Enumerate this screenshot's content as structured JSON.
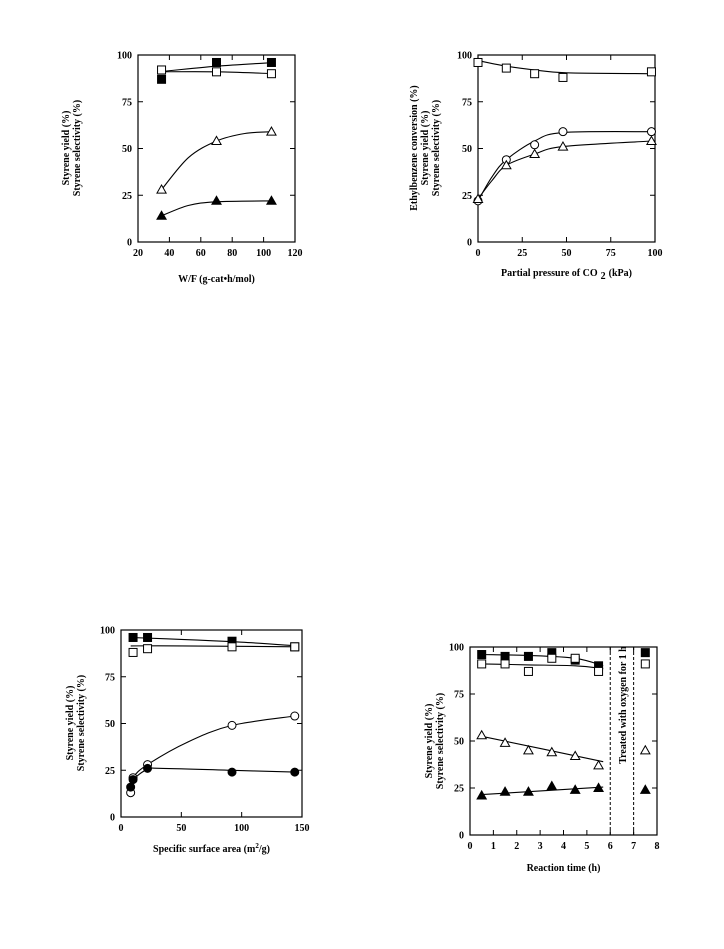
{
  "chart_data": [
    {
      "type": "scatter",
      "title": "",
      "xlabel": "W/F (g-cat•h/mol)",
      "ylabels": [
        "Styrene yield (%)",
        "Styrene selectivity (%)"
      ],
      "xlim": [
        20,
        120
      ],
      "ylim": [
        0,
        100
      ],
      "xticks": [
        20,
        40,
        60,
        80,
        100,
        120
      ],
      "yticks": [
        0,
        25,
        50,
        75,
        100
      ],
      "series": [
        {
          "marker": "square-filled",
          "x": [
            35,
            70,
            105
          ],
          "y": [
            87,
            96,
            96
          ],
          "curve": [
            [
              33,
              91
            ],
            [
              70,
              94
            ],
            [
              107,
              96
            ]
          ]
        },
        {
          "marker": "square-open",
          "x": [
            35,
            70,
            105
          ],
          "y": [
            92,
            91,
            90
          ],
          "curve": [
            [
              33,
              91
            ],
            [
              70,
              91
            ],
            [
              107,
              90
            ]
          ]
        },
        {
          "marker": "triangle-open",
          "x": [
            35,
            70,
            105
          ],
          "y": [
            28,
            54,
            59
          ],
          "curve": [
            [
              35,
              28
            ],
            [
              52,
              45
            ],
            [
              70,
              54
            ],
            [
              88,
              58
            ],
            [
              105,
              59
            ]
          ]
        },
        {
          "marker": "triangle-filled",
          "x": [
            35,
            70,
            105
          ],
          "y": [
            14,
            22,
            22
          ],
          "curve": [
            [
              35,
              14
            ],
            [
              52,
              19.5
            ],
            [
              70,
              21.5
            ],
            [
              105,
              22
            ]
          ]
        }
      ]
    },
    {
      "type": "scatter",
      "title": "",
      "xlabel": "Partial pressure of CO",
      "xlabel_sub": "2",
      "xlabel_unit": "(kPa)",
      "ylabels": [
        "Ethylbenzene conversion (%)",
        "Styrene yield (%)",
        "Styrene selectivity (%)"
      ],
      "xlim": [
        0,
        100
      ],
      "ylim": [
        0,
        100
      ],
      "xticks": [
        0,
        25,
        50,
        75,
        100
      ],
      "yticks": [
        0,
        25,
        50,
        75,
        100
      ],
      "series": [
        {
          "marker": "square-open",
          "x": [
            0,
            16,
            32,
            48,
            98
          ],
          "y": [
            96,
            93,
            90,
            88,
            91
          ],
          "curve": [
            [
              0,
              97
            ],
            [
              16,
              94
            ],
            [
              32,
              92
            ],
            [
              50,
              90.5
            ],
            [
              98,
              90
            ]
          ]
        },
        {
          "marker": "circle-open",
          "x": [
            0,
            16,
            32,
            48,
            98
          ],
          "y": [
            22,
            44,
            52,
            59,
            59
          ],
          "curve": [
            [
              0,
              22
            ],
            [
              8,
              35
            ],
            [
              16,
              44
            ],
            [
              32,
              54
            ],
            [
              48,
              58.5
            ],
            [
              98,
              59
            ]
          ]
        },
        {
          "marker": "triangle-open",
          "x": [
            0,
            16,
            32,
            48,
            98
          ],
          "y": [
            23,
            41,
            47,
            51,
            54
          ],
          "curve": [
            [
              0,
              23
            ],
            [
              8,
              33
            ],
            [
              16,
              41
            ],
            [
              32,
              47
            ],
            [
              48,
              51
            ],
            [
              98,
              54
            ]
          ]
        }
      ]
    },
    {
      "type": "scatter",
      "title": "",
      "xlabel": "Specific surface area (m",
      "xlabel_sup": "2",
      "xlabel_unit": "/g)",
      "ylabels": [
        "Styrene yield (%)",
        "Styrene selectivity (%)"
      ],
      "xlim": [
        0,
        150
      ],
      "ylim": [
        0,
        100
      ],
      "xticks": [
        0,
        50,
        100,
        150
      ],
      "yticks": [
        0,
        25,
        50,
        75,
        100
      ],
      "series": [
        {
          "marker": "square-filled",
          "x": [
            10,
            22,
            92,
            144
          ],
          "y": [
            96,
            96,
            94,
            91
          ],
          "curve": [
            [
              8,
              96
            ],
            [
              50,
              95
            ],
            [
              100,
              93.5
            ],
            [
              146,
              91.5
            ]
          ]
        },
        {
          "marker": "square-open",
          "x": [
            10,
            22,
            92,
            144
          ],
          "y": [
            88,
            90,
            91,
            91
          ],
          "curve": [
            [
              8,
              91.5
            ],
            [
              50,
              91.5
            ],
            [
              146,
              91
            ]
          ]
        },
        {
          "marker": "circle-open",
          "x": [
            8,
            10,
            22,
            92,
            144
          ],
          "y": [
            13,
            21,
            28,
            49,
            54
          ],
          "curve": [
            [
              8,
              13
            ],
            [
              10,
              21
            ],
            [
              22,
              28
            ],
            [
              55,
              40
            ],
            [
              92,
              49
            ],
            [
              144,
              54
            ]
          ]
        },
        {
          "marker": "circle-filled",
          "x": [
            8,
            10,
            22,
            92,
            144
          ],
          "y": [
            16,
            20,
            26,
            24,
            24
          ],
          "curve": [
            [
              8,
              16
            ],
            [
              10,
              20
            ],
            [
              22,
              25.5
            ],
            [
              35,
              26
            ],
            [
              92,
              25
            ],
            [
              144,
              24
            ]
          ]
        }
      ]
    },
    {
      "type": "scatter",
      "title": "",
      "xlabel": "Reaction time (h)",
      "ylabels": [
        "Styrene yield (%)",
        "Styrene selectivity (%)"
      ],
      "xlim": [
        0,
        8
      ],
      "ylim": [
        0,
        100
      ],
      "xticks": [
        0,
        1,
        2,
        3,
        4,
        5,
        6,
        7,
        8
      ],
      "yticks": [
        0,
        25,
        50,
        75,
        100
      ],
      "annotation": "Treated with oxygen for 1 h",
      "dashed_x": [
        6,
        7
      ],
      "series": [
        {
          "marker": "square-filled",
          "x": [
            0.5,
            1.5,
            2.5,
            3.5,
            4.5,
            5.5,
            7.5
          ],
          "y": [
            96,
            95,
            95,
            97,
            93,
            90,
            97
          ],
          "curve": [
            [
              0.5,
              96
            ],
            [
              2.5,
              95.5
            ],
            [
              4.5,
              94
            ],
            [
              5.7,
              90
            ]
          ]
        },
        {
          "marker": "square-open",
          "x": [
            0.5,
            1.5,
            2.5,
            3.5,
            4.5,
            5.5,
            7.5
          ],
          "y": [
            91,
            91,
            87,
            94,
            94,
            87,
            91
          ],
          "curve": [
            [
              0.5,
              91
            ],
            [
              2.5,
              90.5
            ],
            [
              4.5,
              90
            ],
            [
              5.7,
              88.5
            ]
          ]
        },
        {
          "marker": "triangle-open",
          "x": [
            0.5,
            1.5,
            2.5,
            3.5,
            4.5,
            5.5,
            7.5
          ],
          "y": [
            53,
            49,
            45,
            44,
            42,
            37,
            45
          ],
          "curve": [
            [
              0.5,
              52.5
            ],
            [
              5.7,
              39
            ]
          ]
        },
        {
          "marker": "triangle-filled",
          "x": [
            0.5,
            1.5,
            2.5,
            3.5,
            4.5,
            5.5,
            7.5
          ],
          "y": [
            21,
            23,
            23,
            26,
            24,
            25,
            24
          ],
          "curve": [
            [
              0.5,
              21.5
            ],
            [
              5.7,
              25.5
            ]
          ]
        }
      ]
    }
  ]
}
